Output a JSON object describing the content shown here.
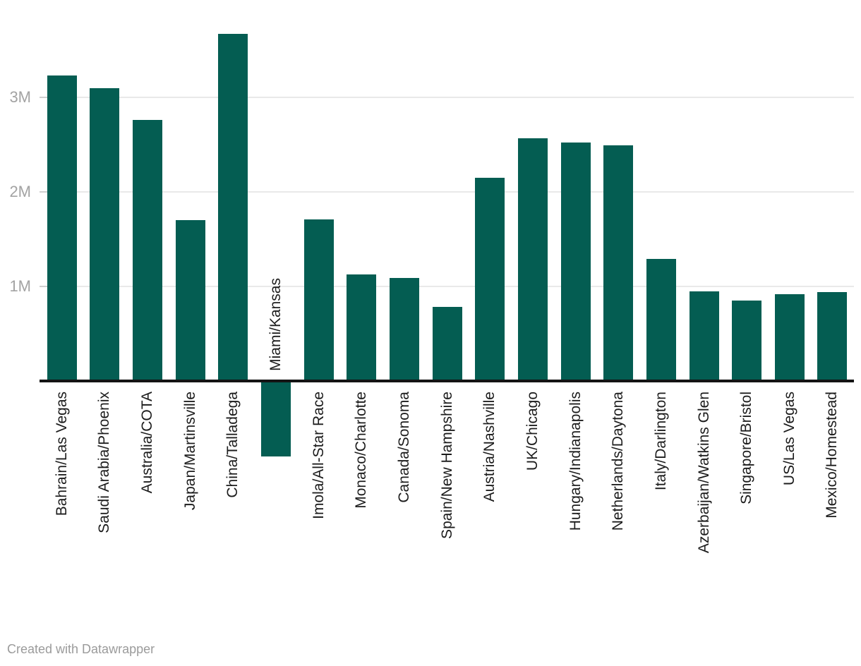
{
  "chart_data": {
    "type": "bar",
    "title": "",
    "categories": [
      "Bahrain/Las Vegas",
      "Saudi Arabia/Phoenix",
      "Australia/COTA",
      "Japan/Martinsville",
      "China/Talladega",
      "Miami/Kansas",
      "Imola/All-Star Race",
      "Monaco/Charlotte",
      "Canada/Sonoma",
      "Spain/New Hampshire",
      "Austria/Nashville",
      "UK/Chicago",
      "Hungary/Indianapolis",
      "Netherlands/Daytona",
      "Italy/Darlington",
      "Azerbaijan/Watkins Glen",
      "Singapore/Bristol",
      "US/Las Vegas",
      "Mexico/Homestead"
    ],
    "values": [
      3.23,
      3.1,
      2.76,
      1.7,
      3.67,
      -0.8,
      1.71,
      1.13,
      1.09,
      0.78,
      2.15,
      2.57,
      2.52,
      2.49,
      1.29,
      0.95,
      0.85,
      0.92,
      0.94
    ],
    "value_unit": "M",
    "xlabel": "",
    "ylabel": "",
    "ylim": [
      -0.85,
      3.75
    ],
    "y_ticks": [
      {
        "label": "1M",
        "value": 1
      },
      {
        "label": "2M",
        "value": 2
      },
      {
        "label": "3M",
        "value": 3
      }
    ],
    "grid": "horizontal",
    "legend_position": "none",
    "bar_color": "#045d52"
  },
  "footer": {
    "credit": "Created with Datawrapper"
  },
  "colors": {
    "bar": "#045d52",
    "axis_line": "#141414",
    "gridline": "#e9e9e9",
    "tick_label": "#a3a3a3",
    "category_label": "#1c1c1c",
    "footer_text": "#9b9b9b",
    "background": "#ffffff"
  }
}
